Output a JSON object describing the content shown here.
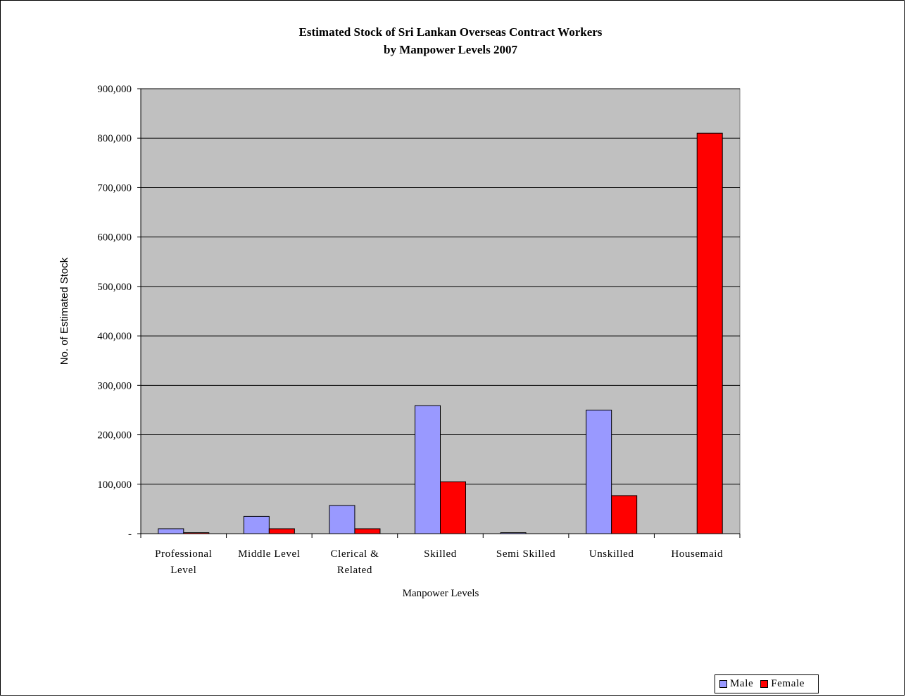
{
  "chart_data": {
    "type": "bar",
    "title_line1": "Estimated Stock of Sri Lankan Overseas Contract Workers",
    "title_line2": "by Manpower Levels 2007",
    "xlabel": "Manpower Levels",
    "ylabel": "No. of Estimated Stock",
    "ylim": [
      0,
      900000
    ],
    "yticks": [
      0,
      100000,
      200000,
      300000,
      400000,
      500000,
      600000,
      700000,
      800000,
      900000
    ],
    "ytick_labels": [
      "-",
      "100,000",
      "200,000",
      "300,000",
      "400,000",
      "500,000",
      "600,000",
      "700,000",
      "800,000",
      "900,000"
    ],
    "categories": [
      [
        "Professional",
        "Level"
      ],
      [
        "Middle Level"
      ],
      [
        "Clerical &",
        "Related"
      ],
      [
        "Skilled"
      ],
      [
        "Semi Skilled"
      ],
      [
        "Unskilled"
      ],
      [
        "Housemaid"
      ]
    ],
    "series": [
      {
        "name": "Male",
        "color": "#9999ff",
        "values": [
          10000,
          35000,
          57000,
          259000,
          2000,
          250000,
          0
        ]
      },
      {
        "name": "Female",
        "color": "#ff0000",
        "values": [
          2000,
          10000,
          10000,
          105000,
          0,
          77000,
          810000
        ]
      }
    ],
    "grid": true,
    "plot_background": "#c0c0c0",
    "legend_position": "bottom-right"
  },
  "legend": {
    "male_label": "Male",
    "female_label": "Female"
  }
}
